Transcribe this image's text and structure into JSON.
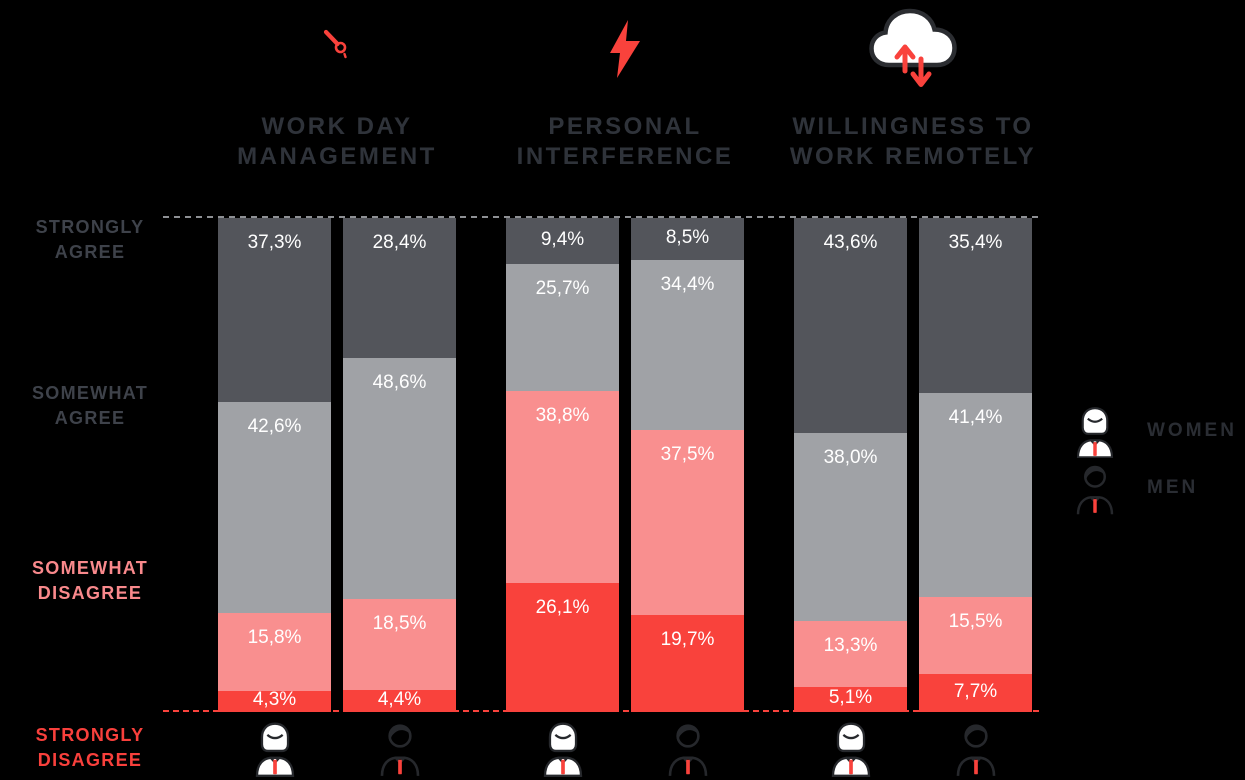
{
  "colors": {
    "background": "#000000",
    "strongly_agree_fill": "#53555B",
    "somewhat_agree_fill": "#A0A2A6",
    "somewhat_disagree_fill": "#F98F8F",
    "strongly_disagree_fill": "#F9423C",
    "value_label_text": "#FFFFFF",
    "header_text": "#2F333A",
    "agree_row_label_text": "#3E424A",
    "somewhat_disagree_row_label_text": "#F9898C",
    "strongly_disagree_row_label_text": "#F9403C",
    "top_dashed_line": "#8E9094",
    "bottom_dashed_line": "#F9423C",
    "accent_red": "#F9423C",
    "icon_outline": "#26282C",
    "icon_fill": "#FFFFFF"
  },
  "rows": [
    {
      "label": "STRONGLY\nAGREE",
      "tone": "dark"
    },
    {
      "label": "SOMEWHAT\nAGREE",
      "tone": "gray"
    },
    {
      "label": "SOMEWHAT\nDISAGREE",
      "tone": "salmon"
    },
    {
      "label": "STRONGLY\nDISAGREE",
      "tone": "red"
    }
  ],
  "legend": {
    "items": [
      {
        "label": "WOMEN",
        "icon": "woman-icon"
      },
      {
        "label": "MEN",
        "icon": "man-icon"
      }
    ]
  },
  "chart_data": {
    "type": "bar",
    "stacked": true,
    "orientation": "vertical",
    "value_unit": "%",
    "decimal_separator": ",",
    "grid": false,
    "ylim": [
      0,
      100
    ],
    "categories": [
      "STRONGLY AGREE",
      "SOMEWHAT AGREE",
      "SOMEWHAT DISAGREE",
      "STRONGLY DISAGREE"
    ],
    "segment_colors": [
      "#53555B",
      "#A0A2A6",
      "#F98F8F",
      "#F9423C"
    ],
    "groups": [
      {
        "title": "WORK DAY\nMANAGEMENT",
        "icon": "clock-hands-icon",
        "series": [
          {
            "name": "WOMEN",
            "icon": "woman-icon",
            "values": [
              37.3,
              42.6,
              15.8,
              4.3
            ],
            "value_labels": [
              "37,3%",
              "42,6%",
              "15,8%",
              "4,3%"
            ]
          },
          {
            "name": "MEN",
            "icon": "man-icon",
            "values": [
              28.4,
              48.6,
              18.5,
              4.4
            ],
            "value_labels": [
              "28,4%",
              "48,6%",
              "18,5%",
              "4,4%"
            ]
          }
        ]
      },
      {
        "title": "PERSONAL\nINTERFERENCE",
        "icon": "lightning-icon",
        "series": [
          {
            "name": "WOMEN",
            "icon": "woman-icon",
            "values": [
              9.4,
              25.7,
              38.8,
              26.1
            ],
            "value_labels": [
              "9,4%",
              "25,7%",
              "38,8%",
              "26,1%"
            ]
          },
          {
            "name": "MEN",
            "icon": "man-icon",
            "values": [
              8.5,
              34.4,
              37.5,
              19.7
            ],
            "value_labels": [
              "8,5%",
              "34,4%",
              "37,5%",
              "19,7%"
            ]
          }
        ]
      },
      {
        "title": "WILLINGNESS TO\nWORK REMOTELY",
        "icon": "cloud-sync-icon",
        "series": [
          {
            "name": "WOMEN",
            "icon": "woman-icon",
            "values": [
              43.6,
              38.0,
              13.3,
              5.1
            ],
            "value_labels": [
              "43,6%",
              "38,0%",
              "13,3%",
              "5,1%"
            ]
          },
          {
            "name": "MEN",
            "icon": "man-icon",
            "values": [
              35.4,
              41.4,
              15.5,
              7.7
            ],
            "value_labels": [
              "35,4%",
              "41,4%",
              "15,5%",
              "7,7%"
            ]
          }
        ]
      }
    ]
  }
}
